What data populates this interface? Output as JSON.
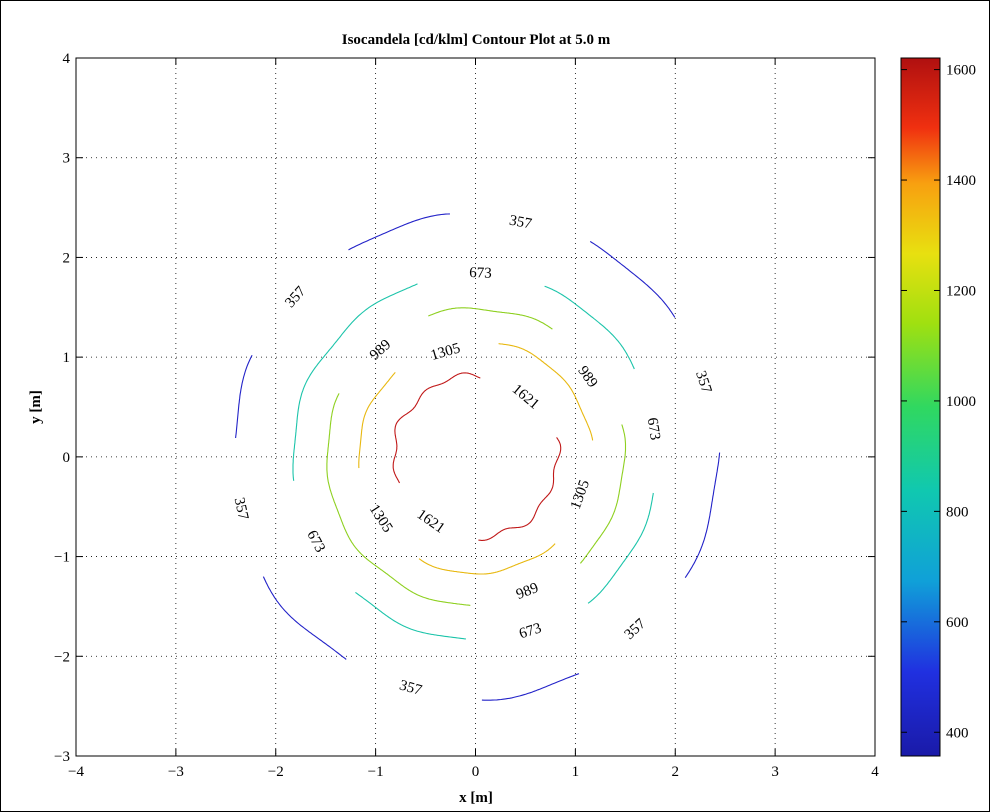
{
  "chart_data": {
    "type": "contour",
    "title": "Isocandela [cd/klm] Contour Plot at 5.0 m",
    "xlabel": "x [m]",
    "ylabel": "y [m]",
    "xlim": [
      -4,
      4
    ],
    "ylim": [
      -3,
      4
    ],
    "xticks": [
      "−4",
      "−3",
      "−2",
      "−1",
      "0",
      "1",
      "2",
      "3",
      "4"
    ],
    "yticks": [
      "−3",
      "−2",
      "−1",
      "0",
      "1",
      "2",
      "3",
      "4"
    ],
    "grid": true,
    "colorbar": {
      "range": [
        357,
        1621
      ],
      "ticks": [
        "400",
        "600",
        "800",
        "1000",
        "1200",
        "1400",
        "1600"
      ],
      "tick_values": [
        400,
        600,
        800,
        1000,
        1200,
        1400,
        1600
      ],
      "colormap": "jet"
    },
    "levels": [
      {
        "value": 357,
        "label": "357",
        "color": "#2222c8",
        "radius": 2.43
      },
      {
        "value": 673,
        "label": "673",
        "color": "#1cc4aa",
        "radius": 1.83
      },
      {
        "value": 989,
        "label": "989",
        "color": "#8ed020",
        "radius": 1.49
      },
      {
        "value": 1305,
        "label": "1305",
        "color": "#e8b810",
        "radius": 1.17
      },
      {
        "value": 1621,
        "label": "1621",
        "color": "#c01818",
        "radius": 0.82
      }
    ],
    "contour_labels": [
      {
        "text": "357",
        "x": 0.45,
        "y": 2.35
      },
      {
        "text": "357",
        "x": -1.8,
        "y": 1.6
      },
      {
        "text": "357",
        "x": 2.28,
        "y": 0.75
      },
      {
        "text": "357",
        "x": -2.35,
        "y": -0.52
      },
      {
        "text": "357",
        "x": 1.6,
        "y": -1.73
      },
      {
        "text": "357",
        "x": -0.65,
        "y": -2.32
      },
      {
        "text": "673",
        "x": 0.05,
        "y": 1.84
      },
      {
        "text": "673",
        "x": 1.78,
        "y": 0.28
      },
      {
        "text": "673",
        "x": -1.6,
        "y": -0.85
      },
      {
        "text": "673",
        "x": 0.55,
        "y": -1.75
      },
      {
        "text": "989",
        "x": -0.95,
        "y": 1.07
      },
      {
        "text": "989",
        "x": 1.12,
        "y": 0.8
      },
      {
        "text": "989",
        "x": 0.52,
        "y": -1.35
      },
      {
        "text": "1305",
        "x": -0.3,
        "y": 1.05
      },
      {
        "text": "1305",
        "x": 1.05,
        "y": -0.38
      },
      {
        "text": "1305",
        "x": -0.95,
        "y": -0.62
      },
      {
        "text": "1621",
        "x": 0.5,
        "y": 0.6
      },
      {
        "text": "1621",
        "x": -0.45,
        "y": -0.65
      }
    ]
  }
}
